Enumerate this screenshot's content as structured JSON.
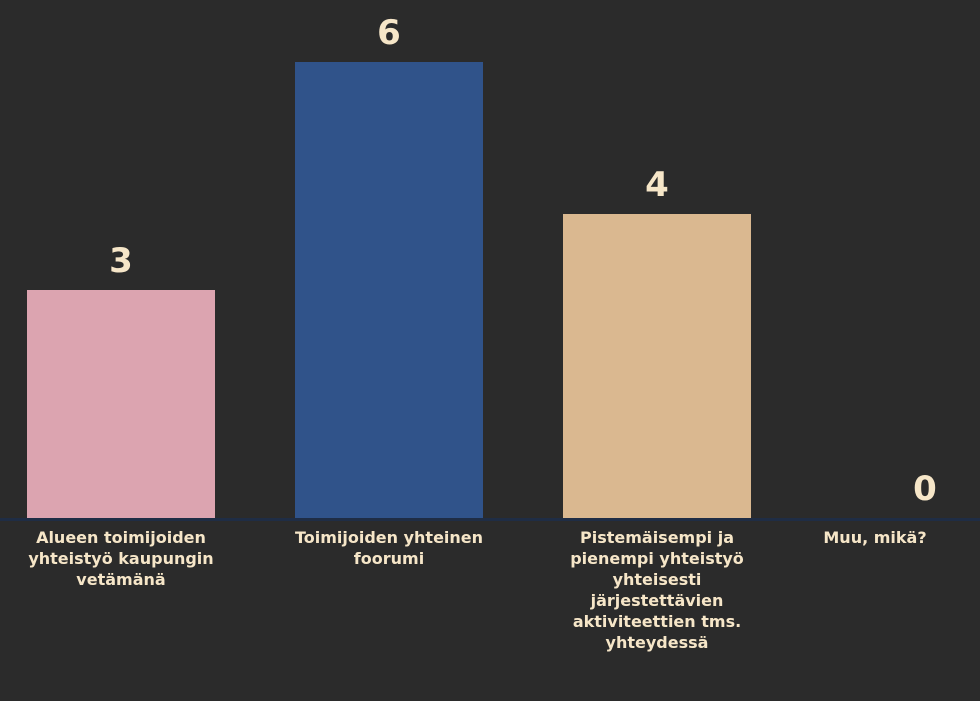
{
  "chart_data": {
    "type": "bar",
    "categories": [
      "Alueen toimijoiden yhteistyö kaupungin vetämänä",
      "Toimijoiden yhteinen foorumi",
      "Pistemäisempi ja pienempi yhteistyö yhteisesti järjestettävien aktiviteettien tms. yhteydessä",
      "Muu, mikä?"
    ],
    "values": [
      3,
      6,
      4,
      0
    ],
    "bar_colors": [
      "#dca4b0",
      "#30538a",
      "#dab890",
      "#dab890"
    ],
    "ylim": [
      0,
      6
    ],
    "grid": false,
    "legend": "none"
  },
  "colors": {
    "background": "#2b2b2b",
    "text": "#f6e6c8",
    "axis": "#1f2d45"
  }
}
